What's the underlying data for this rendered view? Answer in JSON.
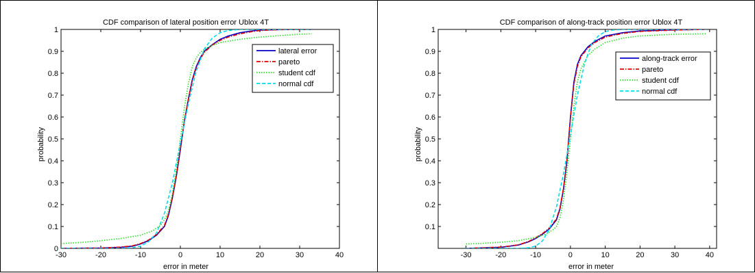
{
  "chart_data": [
    {
      "type": "line",
      "title": "CDF comparison of lateral position error Ublox 4T",
      "xlabel": "error in meter",
      "ylabel": "probability",
      "xlim": [
        -30,
        40
      ],
      "ylim": [
        0,
        1
      ],
      "xticks": [
        -30,
        -20,
        -10,
        0,
        10,
        20,
        30,
        40
      ],
      "yticks": [
        0,
        0.1,
        0.2,
        0.3,
        0.4,
        0.5,
        0.6,
        0.7,
        0.8,
        0.9,
        1
      ],
      "grid": false,
      "legend_position": "top-right",
      "series": [
        {
          "name": "lateral error",
          "color": "#0000CC",
          "style": "solid",
          "x": [
            -30,
            -20,
            -15,
            -12,
            -10,
            -8,
            -6,
            -4,
            -3,
            -2,
            -1,
            0,
            1,
            2,
            3,
            4,
            5,
            6,
            8,
            10,
            12,
            15,
            18,
            20,
            25,
            33
          ],
          "y": [
            0.0,
            0.002,
            0.005,
            0.01,
            0.02,
            0.035,
            0.06,
            0.1,
            0.15,
            0.23,
            0.33,
            0.45,
            0.58,
            0.68,
            0.77,
            0.83,
            0.87,
            0.9,
            0.93,
            0.955,
            0.97,
            0.985,
            0.993,
            0.997,
            0.999,
            1.0
          ]
        },
        {
          "name": "pareto",
          "color": "#E00000",
          "style": "dashdot",
          "x": [
            -30,
            -20,
            -15,
            -12,
            -10,
            -8,
            -6,
            -4,
            -3,
            -2,
            -1,
            0,
            1,
            2,
            3,
            4,
            5,
            6,
            8,
            10,
            12,
            15,
            18,
            20,
            25,
            33
          ],
          "y": [
            0.0,
            0.002,
            0.006,
            0.012,
            0.022,
            0.038,
            0.063,
            0.105,
            0.155,
            0.235,
            0.335,
            0.455,
            0.58,
            0.68,
            0.765,
            0.825,
            0.865,
            0.895,
            0.928,
            0.95,
            0.965,
            0.98,
            0.99,
            0.995,
            0.999,
            1.0
          ]
        },
        {
          "name": "student cdf",
          "color": "#22DD22",
          "style": "dotted",
          "x": [
            -30,
            -25,
            -20,
            -15,
            -10,
            -7,
            -5,
            -4,
            -3,
            -2,
            -1,
            0,
            1,
            2,
            3,
            4,
            5,
            7,
            10,
            15,
            20,
            25,
            30,
            33
          ],
          "y": [
            0.022,
            0.027,
            0.035,
            0.045,
            0.06,
            0.08,
            0.105,
            0.13,
            0.17,
            0.25,
            0.36,
            0.5,
            0.64,
            0.75,
            0.83,
            0.87,
            0.895,
            0.92,
            0.94,
            0.955,
            0.965,
            0.972,
            0.978,
            0.98
          ]
        },
        {
          "name": "normal cdf",
          "color": "#00DDEE",
          "style": "dashed",
          "x": [
            -30,
            -15,
            -12,
            -10,
            -8,
            -6,
            -4,
            -2,
            0,
            2,
            4,
            6,
            8,
            10,
            12,
            15,
            33
          ],
          "y": [
            0.0,
            0.0,
            0.003,
            0.01,
            0.03,
            0.07,
            0.16,
            0.3,
            0.48,
            0.66,
            0.81,
            0.91,
            0.96,
            0.985,
            0.995,
            1.0,
            1.0
          ]
        }
      ]
    },
    {
      "type": "line",
      "title": "CDF comparison of along-track position error Ublox 4T",
      "xlabel": "error in meter",
      "ylabel": "probability",
      "xlim": [
        -38,
        42
      ],
      "ylim": [
        0,
        1
      ],
      "xticks": [
        -30,
        -20,
        -10,
        0,
        10,
        20,
        30,
        40
      ],
      "yticks": [
        0.1,
        0.2,
        0.3,
        0.4,
        0.5,
        0.6,
        0.7,
        0.8,
        0.9,
        1
      ],
      "grid": false,
      "legend_position": "top-right",
      "series": [
        {
          "name": "along-track error",
          "color": "#0000CC",
          "style": "solid",
          "x": [
            -30,
            -20,
            -15,
            -12,
            -10,
            -8,
            -6,
            -4,
            -3,
            -2,
            -1,
            0,
            1,
            2,
            3,
            5,
            7,
            10,
            15,
            20,
            30,
            39
          ],
          "y": [
            0.0,
            0.005,
            0.015,
            0.03,
            0.045,
            0.065,
            0.09,
            0.13,
            0.18,
            0.27,
            0.4,
            0.6,
            0.76,
            0.84,
            0.88,
            0.92,
            0.945,
            0.97,
            0.985,
            0.993,
            0.998,
            1.0
          ]
        },
        {
          "name": "pareto",
          "color": "#E00000",
          "style": "dashdot",
          "x": [
            -30,
            -20,
            -15,
            -12,
            -10,
            -8,
            -6,
            -4,
            -3,
            -2,
            -1,
            0,
            1,
            2,
            3,
            5,
            7,
            10,
            15,
            20,
            30,
            39
          ],
          "y": [
            0.0,
            0.006,
            0.016,
            0.032,
            0.048,
            0.068,
            0.094,
            0.135,
            0.185,
            0.275,
            0.405,
            0.595,
            0.75,
            0.83,
            0.875,
            0.915,
            0.94,
            0.965,
            0.982,
            0.991,
            0.997,
            1.0
          ]
        },
        {
          "name": "student cdf",
          "color": "#22DD22",
          "style": "dotted",
          "x": [
            -30,
            -25,
            -20,
            -15,
            -10,
            -7,
            -5,
            -4,
            -3,
            -2,
            -1,
            0,
            1,
            2,
            3,
            5,
            7,
            10,
            15,
            20,
            30,
            39
          ],
          "y": [
            0.02,
            0.023,
            0.028,
            0.035,
            0.05,
            0.065,
            0.085,
            0.1,
            0.14,
            0.22,
            0.35,
            0.5,
            0.65,
            0.76,
            0.82,
            0.88,
            0.91,
            0.94,
            0.96,
            0.97,
            0.978,
            0.98
          ]
        },
        {
          "name": "normal cdf",
          "color": "#00DDEE",
          "style": "dashed",
          "x": [
            -30,
            -15,
            -12,
            -10,
            -8,
            -6,
            -4,
            -2,
            0,
            2,
            4,
            6,
            8,
            10,
            12,
            15,
            39
          ],
          "y": [
            0.0,
            0.0,
            0.003,
            0.01,
            0.035,
            0.09,
            0.19,
            0.34,
            0.52,
            0.7,
            0.84,
            0.93,
            0.97,
            0.99,
            0.997,
            1.0,
            1.0
          ]
        }
      ]
    }
  ]
}
